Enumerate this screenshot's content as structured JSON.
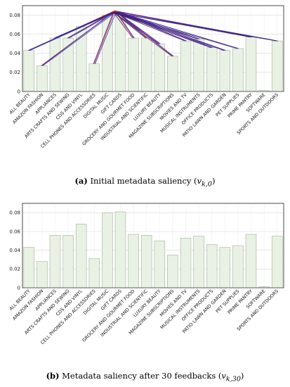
{
  "captions": [
    {
      "tag": "(a)",
      "text": "Initial metadata saliency (",
      "math": "v",
      "sub": "k,0",
      "close": ")"
    },
    {
      "tag": "(b)",
      "text": "Metadata saliency after 30 feedbacks (",
      "math": "v",
      "sub": "k,30",
      "close": ")"
    }
  ],
  "colors": {
    "bar_fill": "#e8f1e4",
    "bar_stroke": "#a3b39c",
    "arrow_red": "#e0191c",
    "arrow_blue": "#1a2fd0",
    "arrow_dark": "#3a1f5f"
  },
  "chart_data": [
    {
      "type": "bar",
      "title": "",
      "xlabel": "",
      "ylabel": "",
      "ylim": [
        0,
        0.09
      ],
      "yticks": [
        0,
        0.02,
        0.04,
        0.06,
        0.08
      ],
      "ytick_labels": [
        "0",
        "0.02",
        "0.04",
        "0.06",
        "0.08"
      ],
      "grid": true,
      "categories": [
        "ALL BEAUTY",
        "AMAZON FASHION",
        "APPLIANCES",
        "ARTS CRAFTS AND SEWING",
        "CDS AND VINYL",
        "CELL PHONES AND ACCESSORIES",
        "DIGITAL MUSIC",
        "GIFT CARDS",
        "GROCERY AND GOURMET FOOD",
        "INDUSTRIAL AND SCIENTIFIC",
        "LUXURY BEAUTY",
        "MAGAZINE SUBSCRIPTIONS",
        "MOVIES AND TV",
        "MUSICAL INSTRUMENTS",
        "OFFICE PRODUCTS",
        "PATIO LAWN AND GARDEN",
        "PET SUPPLIES",
        "PRIME PANTRY",
        "SOFTWARE",
        "SPORTS AND OUTDOORS"
      ],
      "values": [
        0.043,
        0.027,
        0.056,
        0.056,
        0.068,
        0.029,
        0.08,
        0.081,
        0.056,
        0.056,
        0.05,
        0.037,
        0.053,
        0.055,
        0.046,
        0.043,
        0.045,
        0.057,
        0.001,
        0.053
      ],
      "annotations": "arrows from each bar top converge near the GIFT CARDS bar top",
      "arrow_target_index": 7
    },
    {
      "type": "bar",
      "title": "",
      "xlabel": "",
      "ylabel": "",
      "ylim": [
        0,
        0.09
      ],
      "yticks": [
        0,
        0.02,
        0.04,
        0.06,
        0.08
      ],
      "ytick_labels": [
        "0",
        "0.02",
        "0.04",
        "0.06",
        "0.08"
      ],
      "grid": true,
      "categories": [
        "ALL BEAUTY",
        "AMAZON FASHION",
        "APPLIANCES",
        "ARTS CRAFTS AND SEWING",
        "CDS AND VINYL",
        "CELL PHONES AND ACCESSORIES",
        "DIGITAL MUSIC",
        "GIFT CARDS",
        "GROCERY AND GOURMET FOOD",
        "INDUSTRIAL AND SCIENTIFIC",
        "LUXURY BEAUTY",
        "MAGAZINE SUBSCRIPTIONS",
        "MOVIES AND TV",
        "MUSICAL INSTRUMENTS",
        "OFFICE PRODUCTS",
        "PATIO LAWN AND GARDEN",
        "PET SUPPLIES",
        "PRIME PANTRY",
        "SOFTWARE",
        "SPORTS AND OUTDOORS"
      ],
      "values": [
        0.043,
        0.028,
        0.056,
        0.056,
        0.068,
        0.031,
        0.08,
        0.081,
        0.057,
        0.056,
        0.05,
        0.035,
        0.053,
        0.055,
        0.046,
        0.043,
        0.045,
        0.057,
        0.001,
        0.055
      ]
    }
  ]
}
